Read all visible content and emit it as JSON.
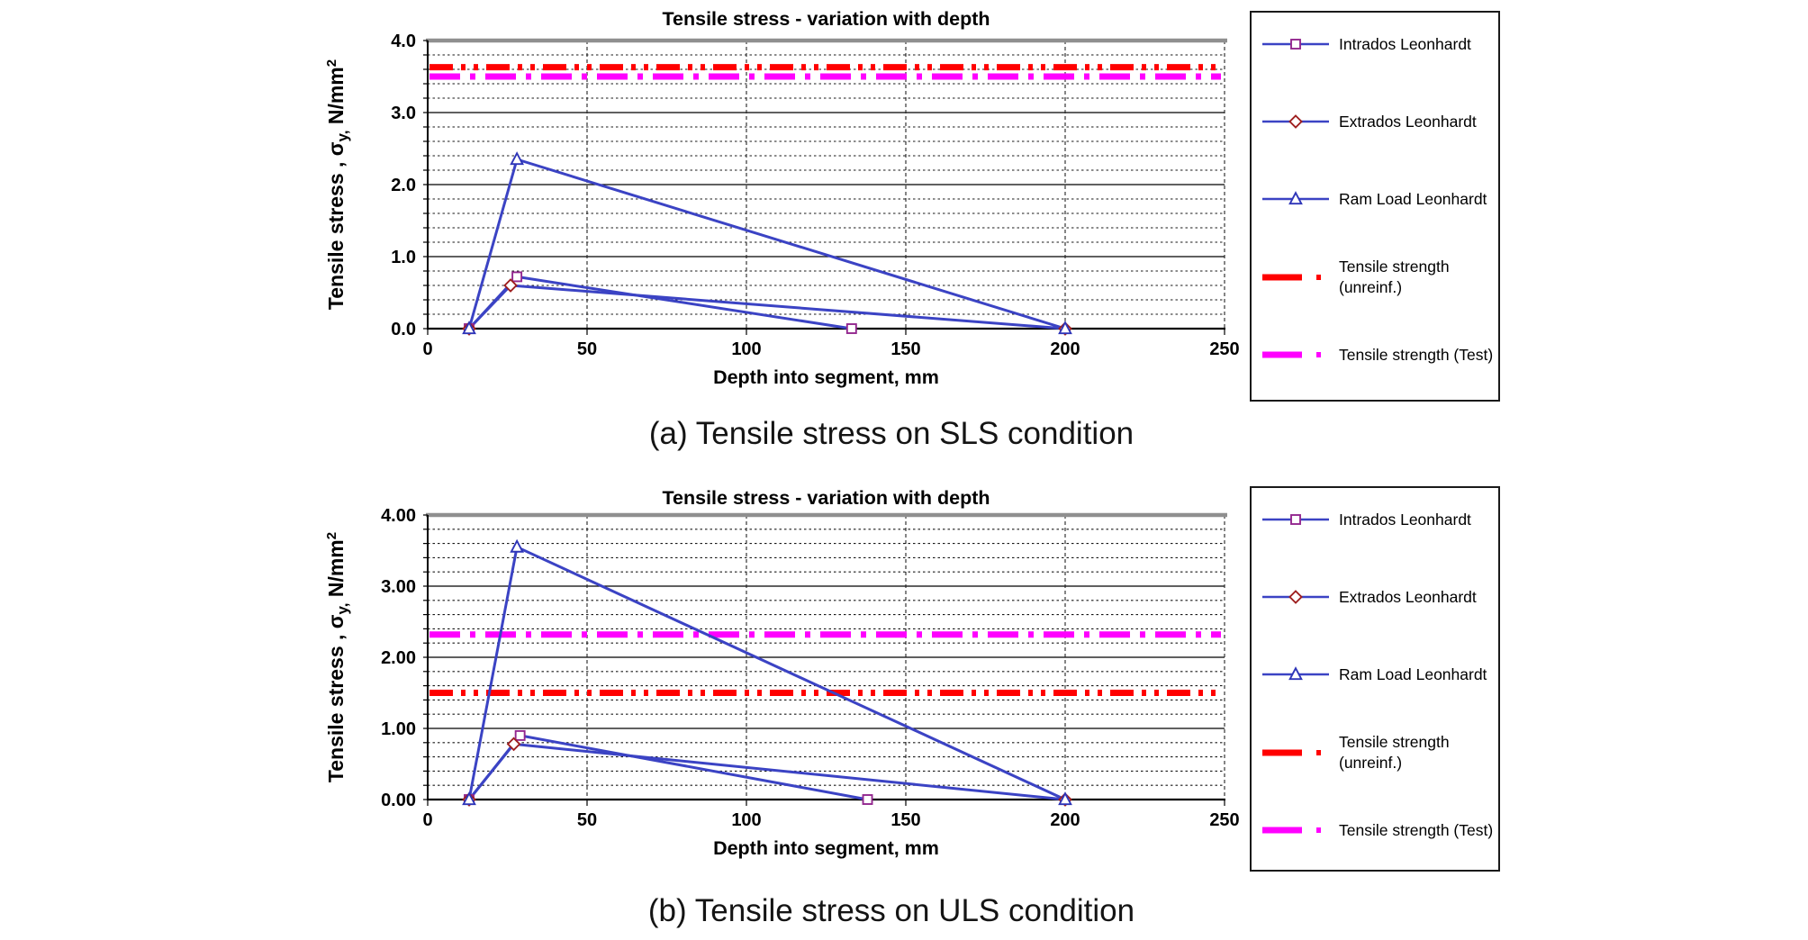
{
  "captions": {
    "a": "(a) Tensile stress on SLS condition",
    "b": "(b) Tensile stress on ULS condition"
  },
  "colors": {
    "series_line": "#3b43c4",
    "marker_square": "#93278f",
    "marker_diamond": "#9e1f1f",
    "marker_triangle": "#2e35b8",
    "strength_unreinf": "#ff0000",
    "strength_test": "#ff00ff",
    "grid_major": "#000000",
    "grid_minor": "#1a1a1a",
    "plot_top_border": "#8f8f8f"
  },
  "legend": {
    "items": [
      {
        "key": "intrados",
        "label": "Intrados Leonhardt",
        "swatch": "line-marker",
        "marker": "square"
      },
      {
        "key": "extrados",
        "label": "Extrados Leonhardt",
        "swatch": "line-marker",
        "marker": "diamond"
      },
      {
        "key": "ram-load",
        "label": "Ram Load Leonhardt",
        "swatch": "line-marker",
        "marker": "triangle"
      },
      {
        "key": "tensile-strength-unreinf",
        "label": "Tensile strength",
        "label2": "(unreinf.)",
        "swatch": "dashdot",
        "color": "#ff0000",
        "pattern": "dash-dot-dot"
      },
      {
        "key": "tensile-strength-test",
        "label": "Tensile strength (Test)",
        "swatch": "dashdot",
        "color": "#ff00ff",
        "pattern": "dash-dot"
      }
    ]
  },
  "chart_data": [
    {
      "id": "sls",
      "type": "line",
      "title": "Tensile stress - variation with depth",
      "xlabel": "Depth into segment, mm",
      "ylabel": "Tensile stress , σy, N/mm²",
      "ylabel_parts": {
        "pre": "Tensile stress , σ",
        "sub": "y,",
        "mid": " N/mm",
        "sup": "2"
      },
      "xlim": [
        0,
        250
      ],
      "ylim": [
        0,
        4
      ],
      "x_ticks": [
        0,
        50,
        100,
        150,
        200,
        250
      ],
      "y_tick_labels": [
        "0.0",
        "1.0",
        "2.0",
        "3.0",
        "4.0"
      ],
      "y_minor_step": 0.2,
      "grid": true,
      "legend_position": "right",
      "series": [
        {
          "name": "Intrados Leonhardt",
          "marker": "square",
          "points": [
            [
              13,
              0
            ],
            [
              28,
              0.72
            ],
            [
              133,
              0
            ]
          ]
        },
        {
          "name": "Extrados Leonhardt",
          "marker": "diamond",
          "points": [
            [
              13,
              0
            ],
            [
              26,
              0.6
            ],
            [
              200,
              0
            ]
          ]
        },
        {
          "name": "Ram Load Leonhardt",
          "marker": "triangle",
          "points": [
            [
              13,
              0
            ],
            [
              28,
              2.35
            ],
            [
              200,
              0
            ]
          ]
        }
      ],
      "thresholds": [
        {
          "name": "Tensile strength (unreinf.)",
          "value": 3.63,
          "color": "#ff0000",
          "pattern": "dash-dot-dot"
        },
        {
          "name": "Tensile strength (Test)",
          "value": 3.5,
          "color": "#ff00ff",
          "pattern": "dash-dot"
        }
      ]
    },
    {
      "id": "uls",
      "type": "line",
      "title": "Tensile stress - variation with depth",
      "xlabel": "Depth into segment, mm",
      "ylabel": "Tensile stress , σy, N/mm²",
      "ylabel_parts": {
        "pre": "Tensile stress , σ",
        "sub": "y,",
        "mid": " N/mm",
        "sup": "2"
      },
      "xlim": [
        0,
        250
      ],
      "ylim": [
        0,
        4
      ],
      "x_ticks": [
        0,
        50,
        100,
        150,
        200,
        250
      ],
      "y_tick_labels": [
        "0.00",
        "1.00",
        "2.00",
        "3.00",
        "4.00"
      ],
      "y_minor_step": 0.2,
      "grid": true,
      "legend_position": "right",
      "series": [
        {
          "name": "Intrados Leonhardt",
          "marker": "square",
          "points": [
            [
              13,
              0
            ],
            [
              29,
              0.9
            ],
            [
              138,
              0
            ]
          ]
        },
        {
          "name": "Extrados Leonhardt",
          "marker": "diamond",
          "points": [
            [
              13,
              0
            ],
            [
              27,
              0.78
            ],
            [
              200,
              0
            ]
          ]
        },
        {
          "name": "Ram Load Leonhardt",
          "marker": "triangle",
          "points": [
            [
              13,
              0
            ],
            [
              28,
              3.55
            ],
            [
              200,
              0
            ]
          ]
        }
      ],
      "thresholds": [
        {
          "name": "Tensile strength (unreinf.)",
          "value": 1.5,
          "color": "#ff0000",
          "pattern": "dash-dot-dot"
        },
        {
          "name": "Tensile strength (Test)",
          "value": 2.32,
          "color": "#ff00ff",
          "pattern": "dash-dot"
        }
      ]
    }
  ]
}
